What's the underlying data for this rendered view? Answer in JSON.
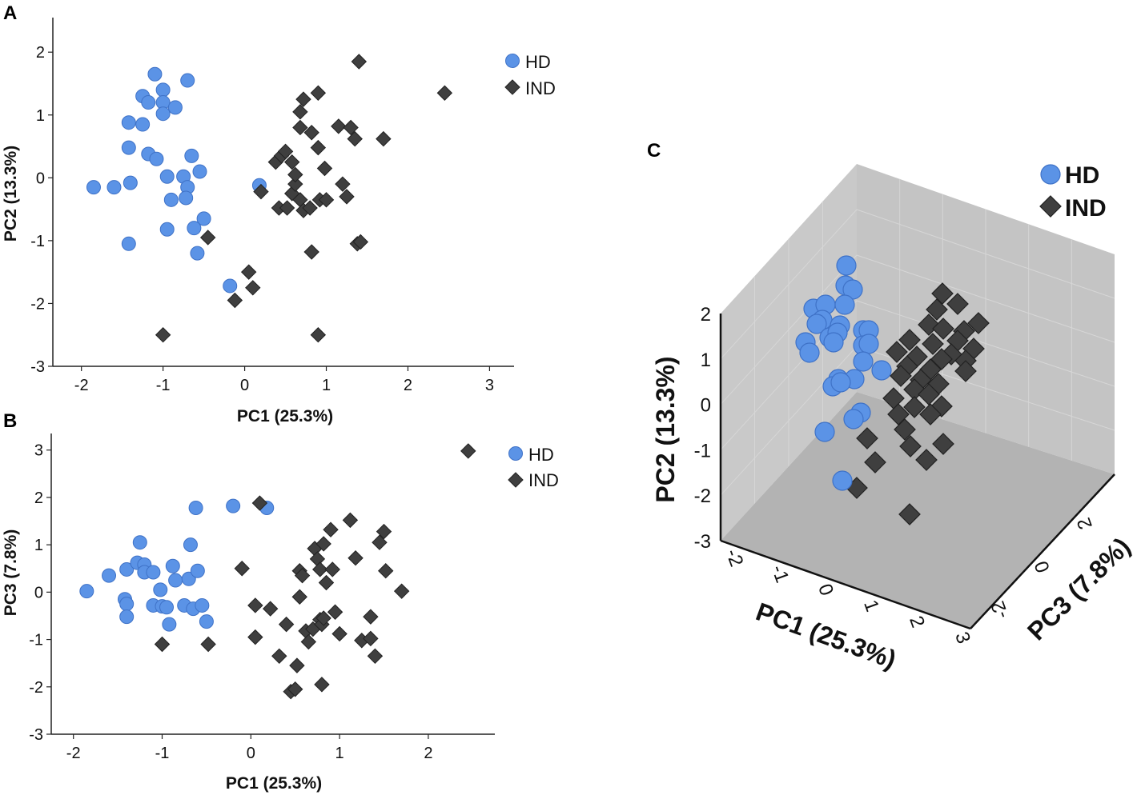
{
  "colors": {
    "hd": "#5b93e6",
    "hd_stroke": "#3f72c7",
    "ind": "#3f3f3f",
    "ind_stroke": "#222222",
    "box_back": "#c8c8c8",
    "box_side": "#bfbfbf",
    "box_floor": "#b2b2b2"
  },
  "chart_data": [
    {
      "panel": "A",
      "type": "scatter",
      "xlabel": "PC1 (25.3%)",
      "ylabel": "PC2 (13.3%)",
      "xlim": [
        -2.35,
        3.3
      ],
      "ylim": [
        -3,
        2.55
      ],
      "xticks": [
        "-2",
        "-1",
        "0",
        "1",
        "2",
        "3"
      ],
      "yticks": [
        "-3",
        "-2",
        "-1",
        "0",
        "1",
        "2"
      ],
      "legend": {
        "position": "top-right",
        "entries": [
          "HD",
          "IND"
        ]
      },
      "series": [
        {
          "name": "HD",
          "marker": "circle",
          "points": [
            [
              -1.85,
              -0.15
            ],
            [
              -1.6,
              -0.15
            ],
            [
              -1.4,
              -0.08
            ],
            [
              -1.42,
              0.48
            ],
            [
              -1.42,
              0.88
            ],
            [
              -1.25,
              0.85
            ],
            [
              -1.25,
              1.3
            ],
            [
              -1.18,
              1.2
            ],
            [
              -1.1,
              1.65
            ],
            [
              -1.0,
              1.4
            ],
            [
              -1.0,
              1.2
            ],
            [
              -1.0,
              1.02
            ],
            [
              -0.85,
              1.12
            ],
            [
              -0.7,
              1.55
            ],
            [
              -1.18,
              0.38
            ],
            [
              -1.08,
              0.3
            ],
            [
              -0.95,
              0.02
            ],
            [
              -0.9,
              -0.35
            ],
            [
              -0.75,
              0.02
            ],
            [
              -0.7,
              -0.15
            ],
            [
              -0.72,
              -0.32
            ],
            [
              -0.65,
              0.35
            ],
            [
              -0.55,
              0.1
            ],
            [
              -0.5,
              -0.65
            ],
            [
              -0.62,
              -0.8
            ],
            [
              -0.58,
              -1.2
            ],
            [
              -0.95,
              -0.82
            ],
            [
              -1.42,
              -1.05
            ],
            [
              -0.18,
              -1.72
            ],
            [
              0.18,
              -0.12
            ]
          ]
        },
        {
          "name": "IND",
          "marker": "diamond",
          "points": [
            [
              -1.0,
              -2.5
            ],
            [
              -0.45,
              -0.95
            ],
            [
              -0.12,
              -1.95
            ],
            [
              0.05,
              -1.5
            ],
            [
              0.1,
              -1.75
            ],
            [
              0.2,
              -0.22
            ],
            [
              0.38,
              0.25
            ],
            [
              0.45,
              0.35
            ],
            [
              0.5,
              0.42
            ],
            [
              0.58,
              0.25
            ],
            [
              0.42,
              -0.48
            ],
            [
              0.52,
              -0.48
            ],
            [
              0.58,
              -0.25
            ],
            [
              0.62,
              -0.1
            ],
            [
              0.68,
              -0.35
            ],
            [
              0.72,
              -0.52
            ],
            [
              0.8,
              -0.48
            ],
            [
              0.92,
              -0.35
            ],
            [
              1.0,
              -0.35
            ],
            [
              0.62,
              0.05
            ],
            [
              0.68,
              1.05
            ],
            [
              0.72,
              1.25
            ],
            [
              0.68,
              0.8
            ],
            [
              0.82,
              0.72
            ],
            [
              0.9,
              1.35
            ],
            [
              0.9,
              0.48
            ],
            [
              0.98,
              0.15
            ],
            [
              1.15,
              0.82
            ],
            [
              1.3,
              0.8
            ],
            [
              1.35,
              0.62
            ],
            [
              1.2,
              -0.1
            ],
            [
              1.25,
              -0.3
            ],
            [
              1.38,
              -1.05
            ],
            [
              1.42,
              -1.02
            ],
            [
              1.4,
              1.85
            ],
            [
              1.7,
              0.62
            ],
            [
              2.45,
              1.35
            ],
            [
              0.82,
              -1.18
            ],
            [
              0.9,
              -2.5
            ]
          ]
        }
      ]
    },
    {
      "panel": "B",
      "type": "scatter",
      "xlabel": "PC1 (25.3%)",
      "ylabel": "PC3 (7.8%)",
      "xlim": [
        -2.25,
        2.75
      ],
      "ylim": [
        -3,
        3.35
      ],
      "xticks": [
        "-2",
        "-1",
        "0",
        "1",
        "2"
      ],
      "yticks": [
        "-3",
        "-2",
        "-1",
        "0",
        "1",
        "2",
        "3"
      ],
      "legend": {
        "position": "top-right",
        "entries": [
          "HD",
          "IND"
        ]
      },
      "series": [
        {
          "name": "HD",
          "marker": "circle",
          "points": [
            [
              -1.85,
              0.02
            ],
            [
              -1.6,
              0.35
            ],
            [
              -1.4,
              0.48
            ],
            [
              -1.42,
              -0.15
            ],
            [
              -1.4,
              -0.25
            ],
            [
              -1.4,
              -0.52
            ],
            [
              -1.28,
              0.62
            ],
            [
              -1.2,
              0.58
            ],
            [
              -1.2,
              0.42
            ],
            [
              -1.25,
              1.05
            ],
            [
              -1.1,
              0.42
            ],
            [
              -1.1,
              -0.28
            ],
            [
              -1.02,
              0.05
            ],
            [
              -1.0,
              -0.3
            ],
            [
              -0.95,
              -0.32
            ],
            [
              -0.92,
              -0.68
            ],
            [
              -0.88,
              0.55
            ],
            [
              -0.85,
              0.25
            ],
            [
              -0.75,
              -0.28
            ],
            [
              -0.7,
              0.28
            ],
            [
              -0.68,
              1.0
            ],
            [
              -0.65,
              -0.35
            ],
            [
              -0.6,
              0.45
            ],
            [
              -0.55,
              -0.28
            ],
            [
              -0.5,
              -0.62
            ],
            [
              -0.62,
              1.78
            ],
            [
              -0.2,
              1.82
            ],
            [
              0.18,
              1.78
            ]
          ]
        },
        {
          "name": "IND",
          "marker": "diamond",
          "points": [
            [
              -1.0,
              -1.1
            ],
            [
              -0.48,
              -1.1
            ],
            [
              -0.1,
              0.5
            ],
            [
              0.05,
              -0.28
            ],
            [
              0.1,
              1.88
            ],
            [
              0.22,
              -0.35
            ],
            [
              0.05,
              -0.95
            ],
            [
              0.32,
              -1.35
            ],
            [
              0.4,
              -0.68
            ],
            [
              0.45,
              -2.1
            ],
            [
              0.5,
              -2.05
            ],
            [
              0.52,
              -1.55
            ],
            [
              0.55,
              0.45
            ],
            [
              0.58,
              0.35
            ],
            [
              0.55,
              -0.1
            ],
            [
              0.62,
              -0.82
            ],
            [
              0.65,
              -1.05
            ],
            [
              0.7,
              -0.78
            ],
            [
              0.72,
              0.92
            ],
            [
              0.75,
              0.7
            ],
            [
              0.78,
              0.48
            ],
            [
              0.78,
              -0.58
            ],
            [
              0.8,
              -0.68
            ],
            [
              0.82,
              -0.55
            ],
            [
              0.82,
              1.02
            ],
            [
              0.85,
              0.2
            ],
            [
              0.9,
              1.32
            ],
            [
              0.92,
              0.48
            ],
            [
              0.95,
              -0.42
            ],
            [
              1.0,
              -0.88
            ],
            [
              1.12,
              1.52
            ],
            [
              1.18,
              0.72
            ],
            [
              1.25,
              -1.02
            ],
            [
              1.35,
              -0.98
            ],
            [
              1.35,
              -0.52
            ],
            [
              1.4,
              -1.35
            ],
            [
              1.45,
              1.05
            ],
            [
              1.5,
              1.28
            ],
            [
              1.52,
              0.45
            ],
            [
              1.7,
              0.02
            ],
            [
              2.45,
              2.98
            ],
            [
              0.8,
              -1.95
            ]
          ]
        }
      ]
    },
    {
      "panel": "C",
      "type": "scatter3d",
      "xlabel": "PC1 (25.3%)",
      "ylabel": "PC2 (13.3%)",
      "zlabel": "PC3 (7.8%)",
      "xticks": [
        "-2",
        "-1",
        "0",
        "1",
        "2",
        "3"
      ],
      "yticks": [
        "-3",
        "-2",
        "-1",
        "0",
        "1",
        "2"
      ],
      "zticks": [
        "2",
        "0",
        "-2"
      ],
      "legend": {
        "position": "top-right",
        "entries": [
          "HD",
          "IND"
        ]
      },
      "series": [
        {
          "name": "HD",
          "marker": "circle"
        },
        {
          "name": "IND",
          "marker": "diamond"
        }
      ]
    }
  ],
  "panel_labels": {
    "a": "A",
    "b": "B",
    "c": "C"
  }
}
